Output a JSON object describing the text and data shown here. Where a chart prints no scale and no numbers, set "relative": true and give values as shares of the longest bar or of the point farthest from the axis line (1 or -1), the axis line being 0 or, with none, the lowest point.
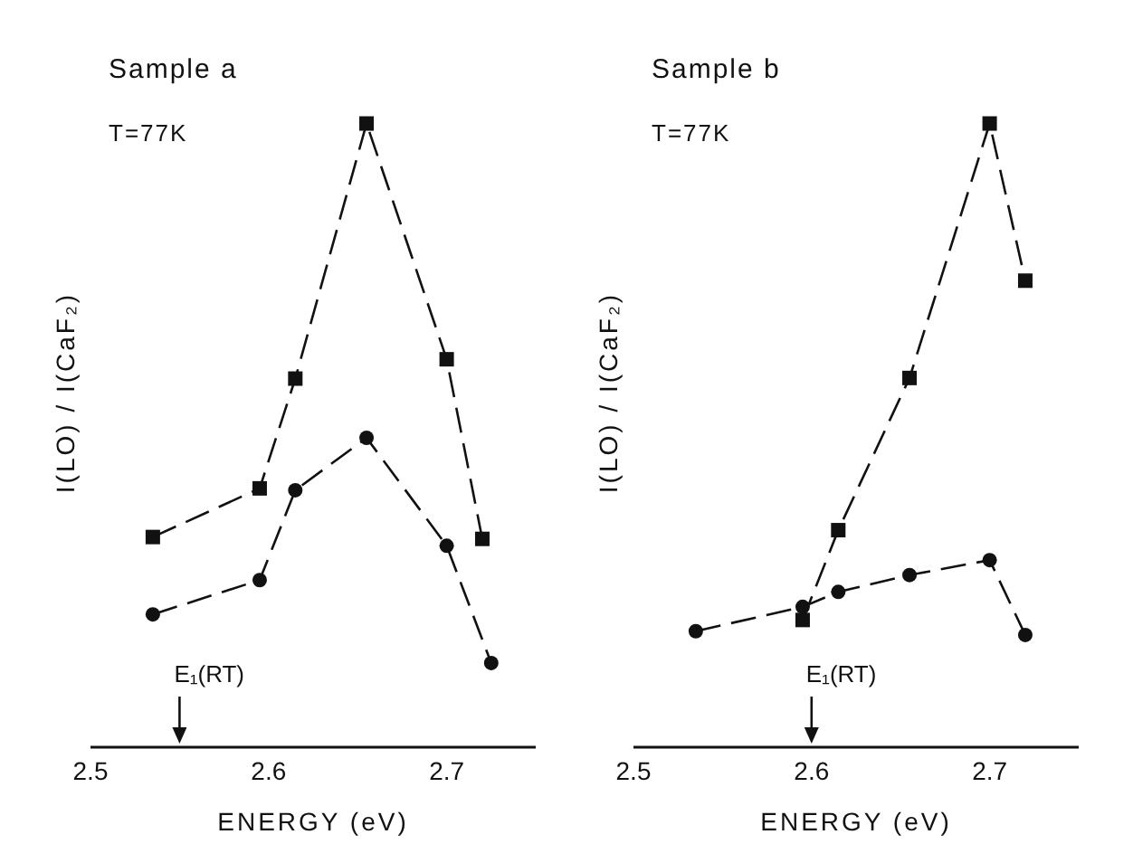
{
  "chart_data": [
    {
      "type": "line",
      "relative": true,
      "title": "Sample a",
      "xlabel": "ENERGY (eV)",
      "ylabel": "I(LO) / I(CaF₂)",
      "xlim": [
        2.5,
        2.75
      ],
      "xticks": [
        2.5,
        2.6,
        2.7
      ],
      "tick_labels": "x",
      "grid": false,
      "line_style": "dashed",
      "annotations": [
        "T=77K"
      ],
      "ref_lines": [
        {
          "axis": "x",
          "value": 2.55,
          "label": "E₁(RT)"
        }
      ],
      "series": [
        {
          "color": "#111111",
          "marker": "square",
          "x": [
            2.535,
            2.595,
            2.615,
            2.655,
            2.7,
            2.72
          ],
          "values": [
            0.337,
            0.415,
            0.591,
            1,
            0.622,
            0.334
          ]
        },
        {
          "color": "#111111",
          "marker": "circle",
          "x": [
            2.535,
            2.595,
            2.615,
            2.655,
            2.7,
            2.725
          ],
          "values": [
            0.213,
            0.268,
            0.412,
            0.496,
            0.323,
            0.135
          ]
        }
      ]
    },
    {
      "type": "line",
      "relative": true,
      "title": "Sample b",
      "xlabel": "ENERGY (eV)",
      "ylabel": "I(LO) / I(CaF₂)",
      "xlim": [
        2.5,
        2.75
      ],
      "xticks": [
        2.5,
        2.6,
        2.7
      ],
      "tick_labels": "x",
      "grid": false,
      "line_style": "dashed",
      "annotations": [
        "T=77K"
      ],
      "ref_lines": [
        {
          "axis": "x",
          "value": 2.6,
          "label": "E₁(RT)"
        }
      ],
      "series": [
        {
          "color": "#111111",
          "marker": "square",
          "x": [
            2.595,
            2.615,
            2.655,
            2.7,
            2.72
          ],
          "values": [
            0.204,
            0.348,
            0.592,
            1,
            0.748
          ]
        },
        {
          "color": "#111111",
          "marker": "circle",
          "x": [
            2.535,
            2.595,
            2.615,
            2.655,
            2.7,
            2.72
          ],
          "values": [
            0.186,
            0.225,
            0.249,
            0.276,
            0.3,
            0.18
          ]
        }
      ]
    }
  ]
}
